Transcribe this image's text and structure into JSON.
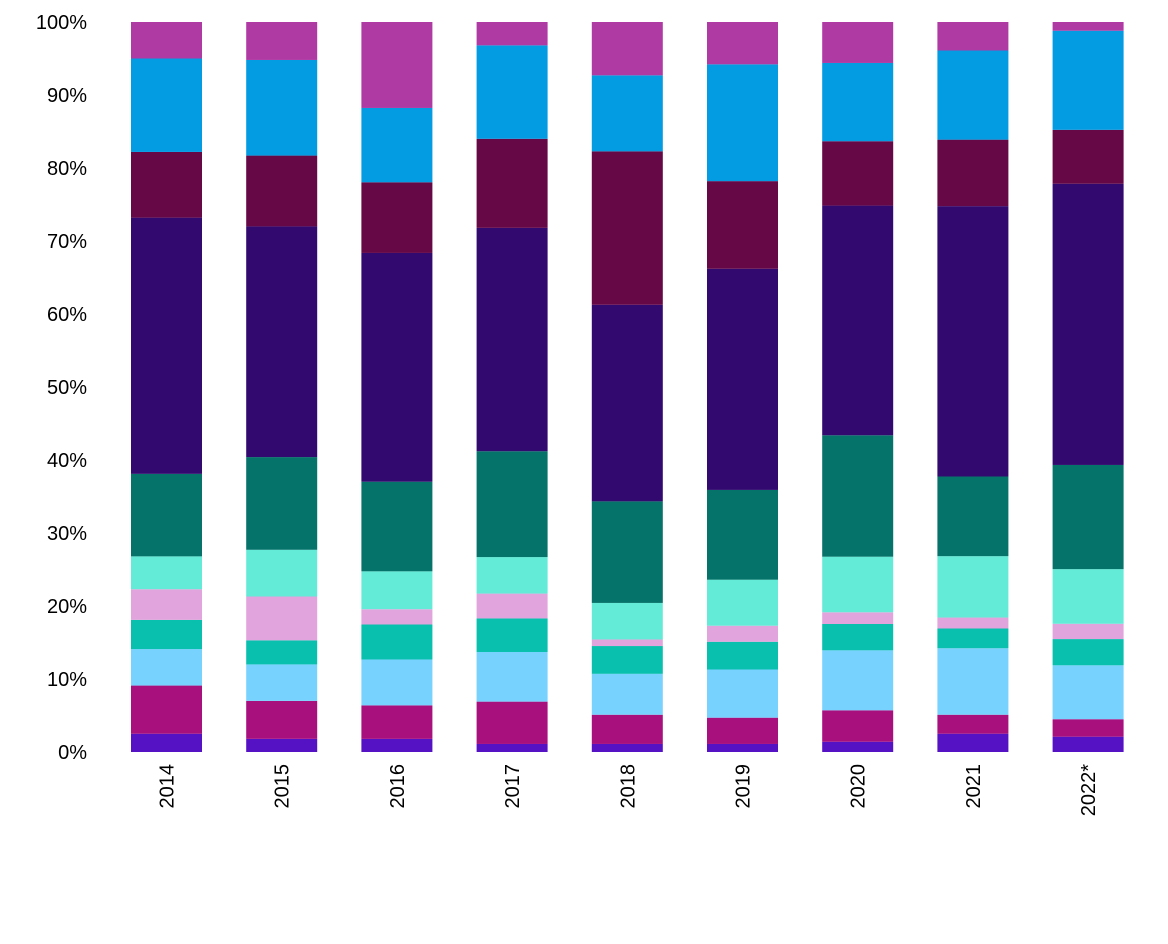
{
  "chart_data": {
    "type": "bar",
    "stacked": true,
    "normalized": true,
    "categories": [
      "2014",
      "2015",
      "2016",
      "2017",
      "2018",
      "2019",
      "2020",
      "2021",
      "2022*"
    ],
    "y_ticks": [
      "0%",
      "10%",
      "20%",
      "30%",
      "40%",
      "50%",
      "60%",
      "70%",
      "80%",
      "90%",
      "100%"
    ],
    "ylim": [
      0,
      100
    ],
    "legend": "none",
    "series": [
      {
        "color": "#5512c4",
        "values": [
          2.5,
          1.8,
          1.8,
          1.1,
          1.1,
          1.1,
          1.4,
          2.5,
          2.1
        ]
      },
      {
        "color": "#a8107e",
        "values": [
          6.6,
          5.2,
          4.6,
          5.8,
          4.0,
          3.6,
          4.3,
          2.6,
          2.4
        ]
      },
      {
        "color": "#78d2fe",
        "values": [
          5.0,
          5.0,
          6.3,
          6.8,
          5.6,
          6.6,
          8.2,
          9.1,
          7.4
        ]
      },
      {
        "color": "#09bfae",
        "values": [
          4.0,
          3.3,
          4.8,
          4.6,
          3.8,
          3.8,
          3.6,
          2.7,
          3.6
        ]
      },
      {
        "color": "#e2a4dc",
        "values": [
          4.2,
          6.0,
          2.1,
          3.4,
          0.9,
          2.2,
          1.6,
          1.5,
          2.1
        ]
      },
      {
        "color": "#63ebd7",
        "values": [
          4.5,
          6.4,
          5.2,
          5.0,
          5.0,
          6.3,
          7.6,
          8.4,
          7.5
        ]
      },
      {
        "color": "#06736a",
        "values": [
          11.3,
          12.7,
          12.3,
          14.5,
          13.9,
          12.3,
          16.6,
          10.9,
          14.3
        ]
      },
      {
        "color": "#31096f",
        "values": [
          35.1,
          31.6,
          31.4,
          30.6,
          26.9,
          30.3,
          31.4,
          37.0,
          38.6
        ]
      },
      {
        "color": "#660746",
        "values": [
          9.0,
          9.7,
          9.7,
          12.2,
          21.0,
          12.0,
          8.8,
          9.1,
          7.4
        ]
      },
      {
        "color": "#039be2",
        "values": [
          12.8,
          13.1,
          10.2,
          12.8,
          10.4,
          16.0,
          10.7,
          12.2,
          13.6
        ]
      },
      {
        "color": "#b03aa4",
        "values": [
          5.0,
          5.2,
          11.8,
          3.2,
          7.3,
          5.8,
          5.6,
          3.9,
          1.2
        ]
      }
    ]
  }
}
